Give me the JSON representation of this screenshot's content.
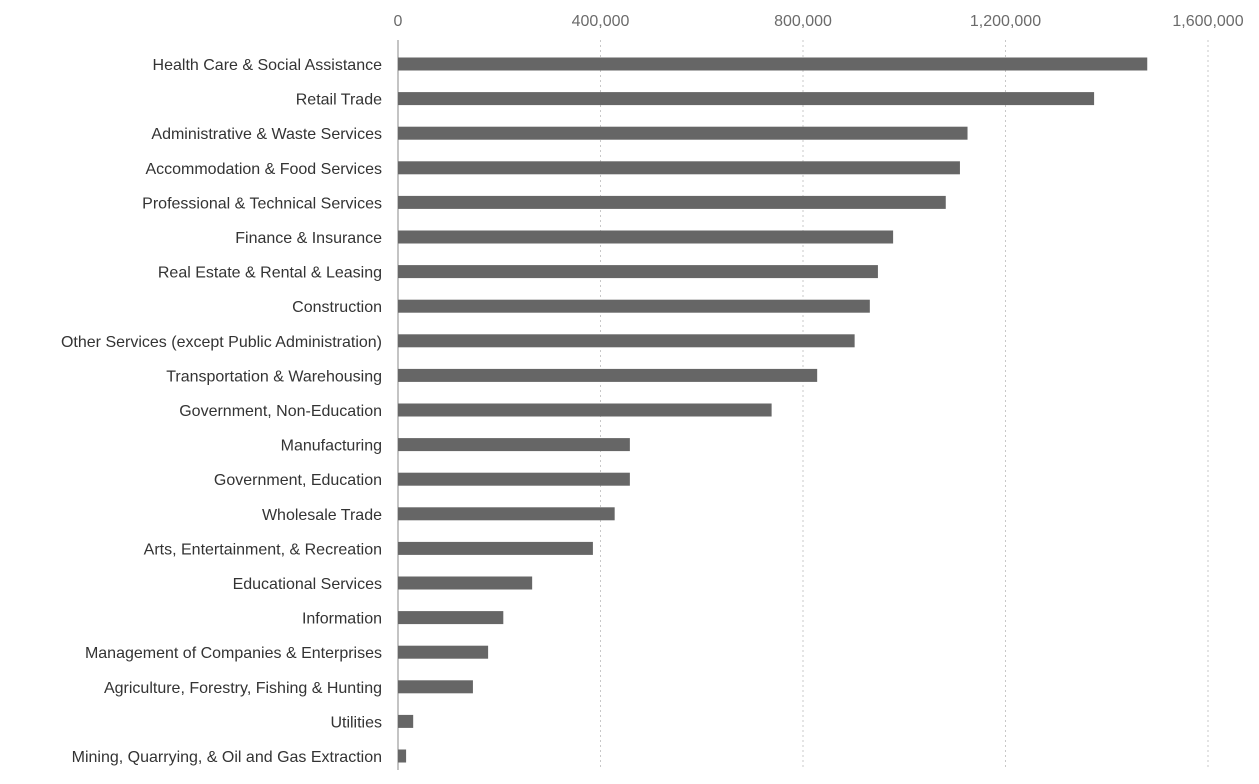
{
  "chart_data": {
    "type": "bar",
    "orientation": "horizontal",
    "categories": [
      "Health Care & Social Assistance",
      "Retail Trade",
      "Administrative & Waste Services",
      "Accommodation & Food Services",
      "Professional & Technical Services",
      "Finance & Insurance",
      "Real Estate & Rental & Leasing",
      "Construction",
      "Other Services (except Public Administration)",
      "Transportation & Warehousing",
      "Government, Non-Education",
      "Manufacturing",
      "Government, Education",
      "Wholesale Trade",
      "Arts, Entertainment, & Recreation",
      "Educational Services",
      "Information",
      "Management of Companies & Enterprises",
      "Agriculture, Forestry, Fishing & Hunting",
      "Utilities",
      "Mining, Quarrying, & Oil and Gas Extraction"
    ],
    "values": [
      1480000,
      1375000,
      1125000,
      1110000,
      1082000,
      978000,
      948000,
      932000,
      902000,
      828000,
      738000,
      458000,
      458000,
      428000,
      385000,
      265000,
      208000,
      178000,
      148000,
      30000,
      16000
    ],
    "xticks": [
      0,
      400000,
      800000,
      1200000,
      1600000
    ],
    "xtick_labels": [
      "0",
      "400,000",
      "800,000",
      "1,200,000",
      "1,600,000"
    ],
    "xlim": [
      0,
      1600000
    ],
    "title": "",
    "xlabel": "",
    "ylabel": "",
    "grid": true,
    "bar_color": "#666666",
    "grid_color": "#c8c8c8"
  }
}
